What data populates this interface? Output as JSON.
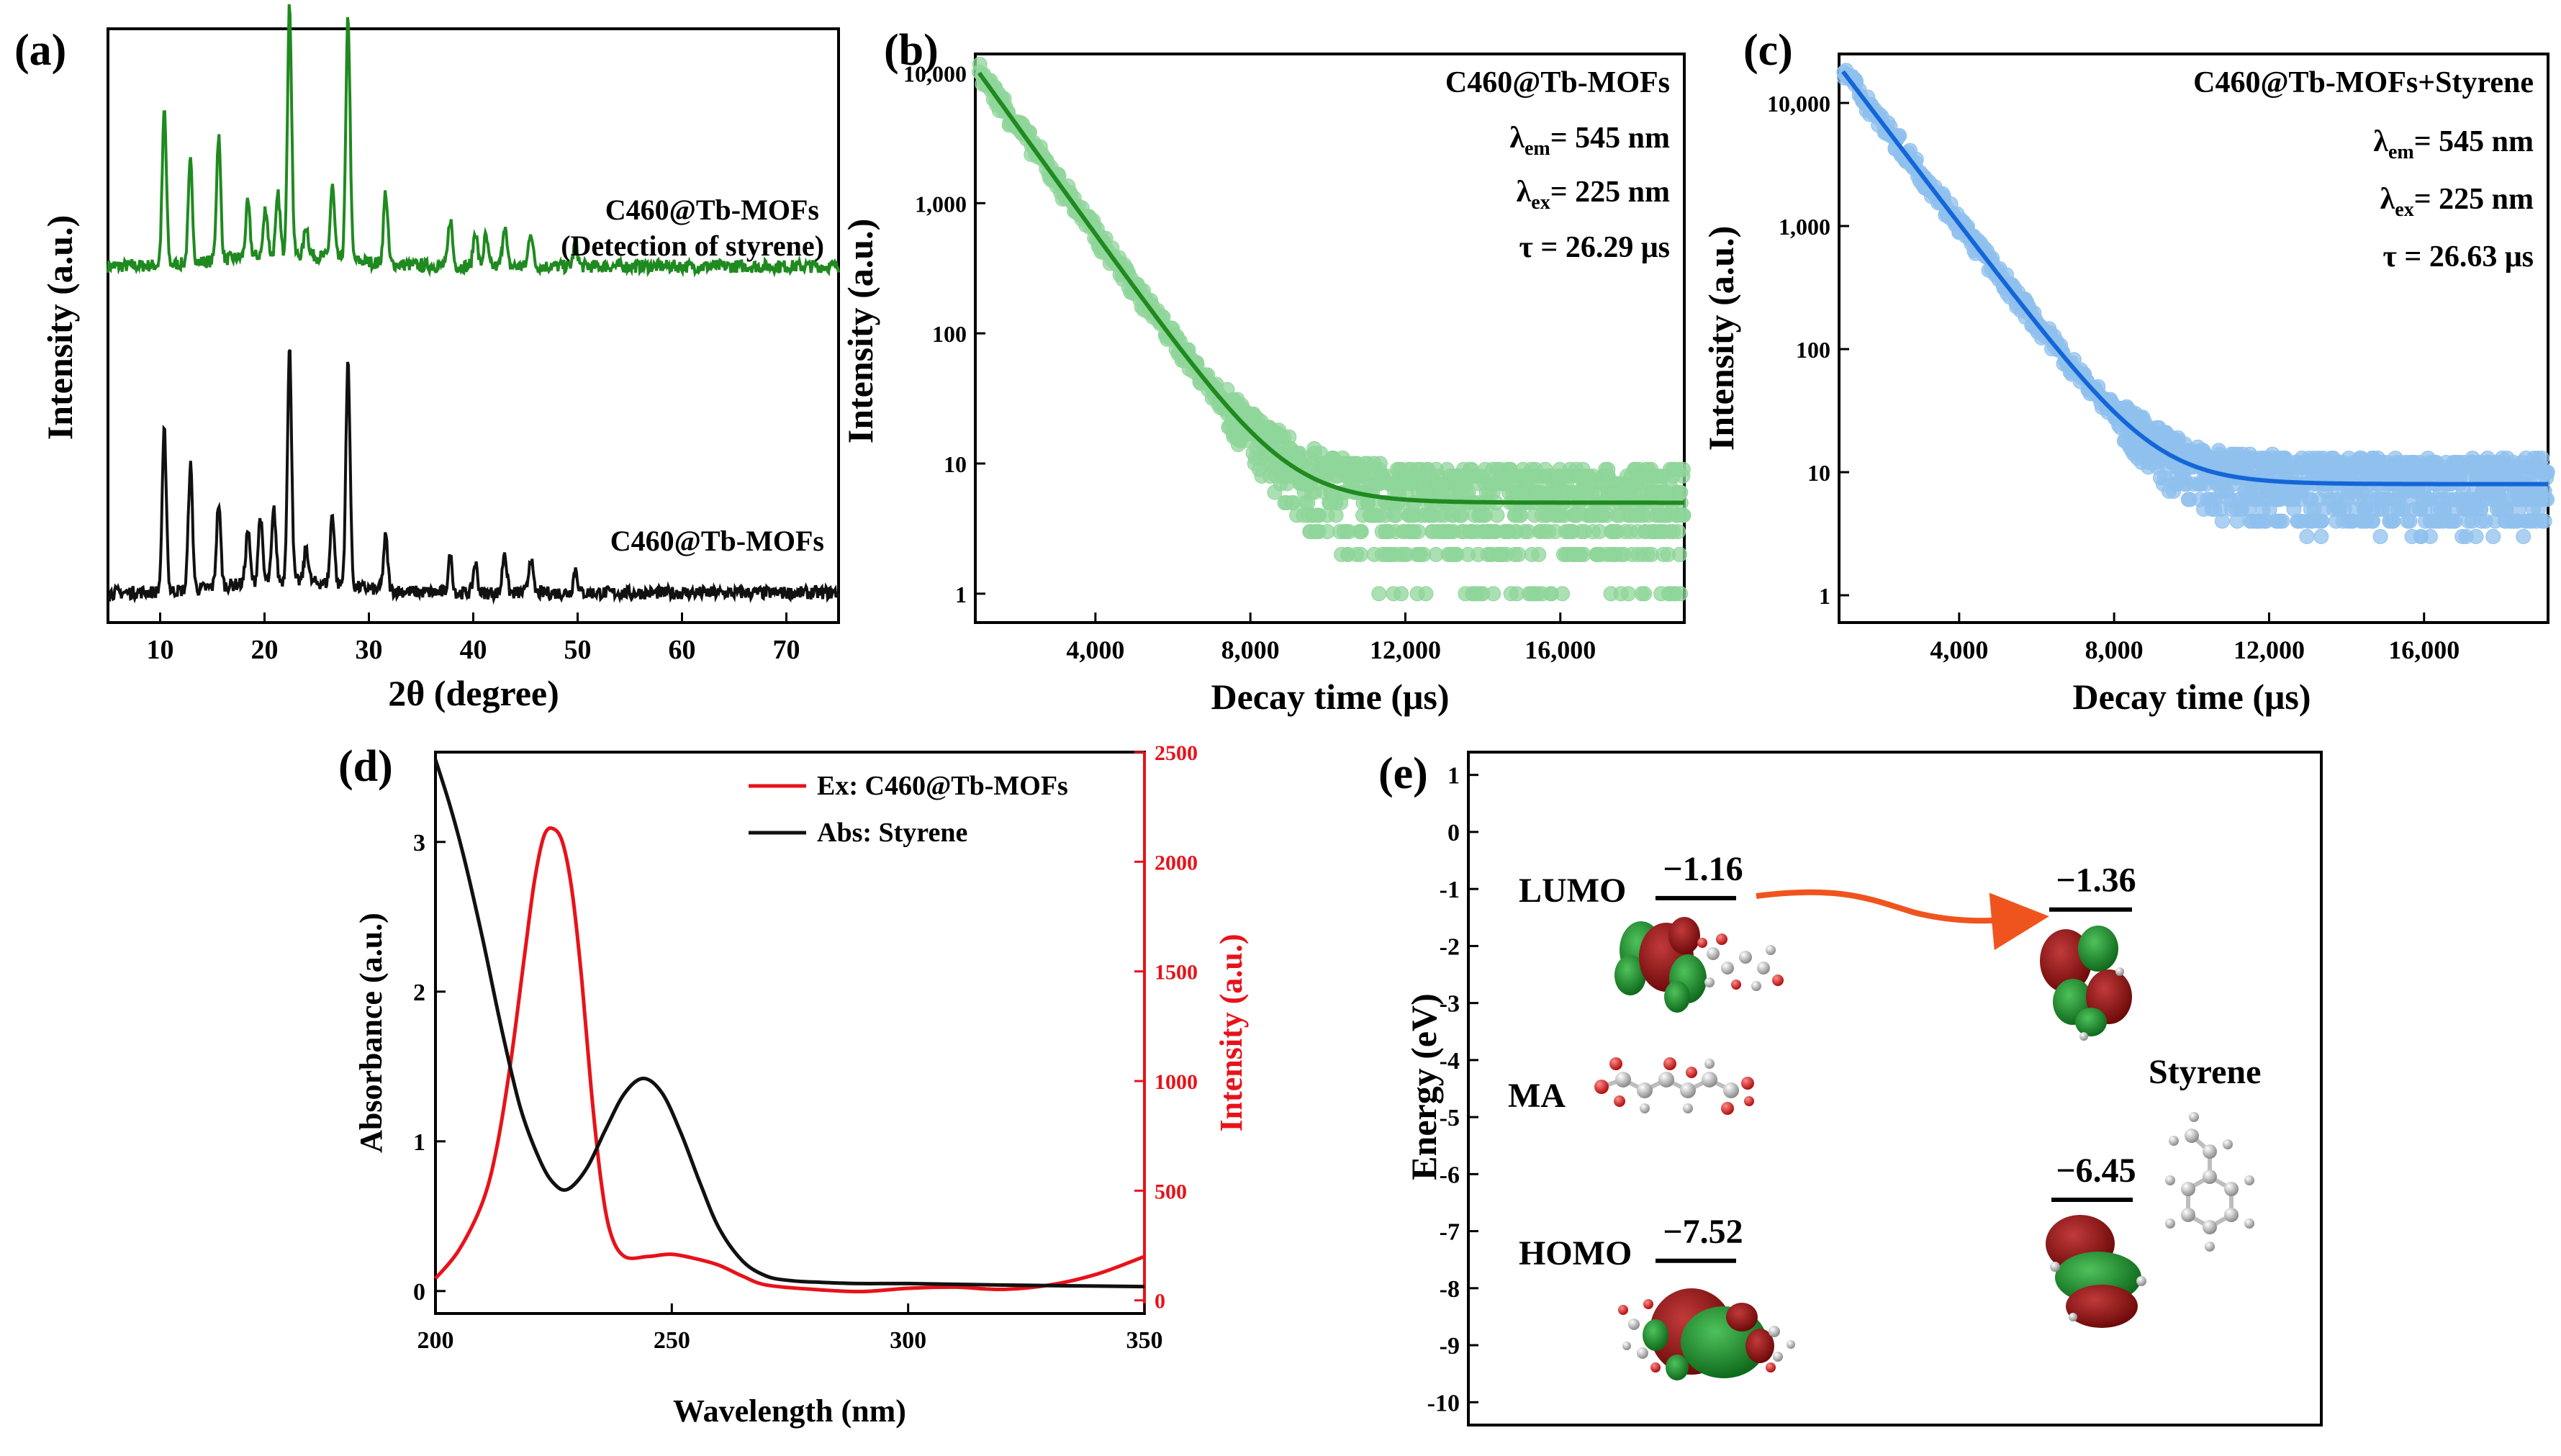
{
  "colors": {
    "green": "#1f8a1f",
    "green_light": "#8fd59a",
    "black": "#111111",
    "blue": "#1466d8",
    "blue_light": "#8fc0ee",
    "red": "#e8121a",
    "orange": "#f0541e",
    "homo_red": "#8b0f0f",
    "lumo_green": "#1b8f2a",
    "atom_grey": "#9a9a9a",
    "atom_red": "#d81e1e"
  },
  "chart_data": [
    {
      "id": "a",
      "panel_label": "(a)",
      "type": "line",
      "title": "",
      "xlabel": "2θ (degree)",
      "ylabel": "Intensity (a.u.)",
      "xlim": [
        5,
        75
      ],
      "xticks": [
        10,
        20,
        30,
        40,
        50,
        60,
        70
      ],
      "xtick_labels": [
        "10",
        "20",
        "30",
        "40",
        "50",
        "60",
        "70"
      ],
      "yticks": [],
      "grid": false,
      "series": [
        {
          "name": "C460@Tb-MOFs (Detection of styrene)",
          "label_lines": [
            "C460@Tb-MOFs",
            "(Detection of styrene)"
          ],
          "color_key": "green",
          "baseline": 0.6,
          "peaks": [
            [
              10.4,
              0.26
            ],
            [
              12.9,
              0.17
            ],
            [
              15.6,
              0.21
            ],
            [
              18.4,
              0.09
            ],
            [
              20.1,
              0.08
            ],
            [
              21.3,
              0.1
            ],
            [
              22.4,
              0.42
            ],
            [
              24.0,
              0.05
            ],
            [
              26.5,
              0.12
            ],
            [
              28.0,
              0.41
            ],
            [
              31.6,
              0.12
            ],
            [
              37.8,
              0.08
            ],
            [
              40.2,
              0.06
            ],
            [
              41.2,
              0.05
            ],
            [
              43.0,
              0.07
            ],
            [
              45.5,
              0.06
            ],
            [
              49.8,
              0.04
            ]
          ]
        },
        {
          "name": "C460@Tb-MOFs",
          "label_lines": [
            "C460@Tb-MOFs"
          ],
          "color_key": "black",
          "baseline": 0.05,
          "peaks": [
            [
              10.4,
              0.27
            ],
            [
              12.9,
              0.21
            ],
            [
              15.6,
              0.14
            ],
            [
              18.4,
              0.09
            ],
            [
              19.6,
              0.11
            ],
            [
              20.9,
              0.12
            ],
            [
              22.4,
              0.39
            ],
            [
              24.0,
              0.06
            ],
            [
              26.5,
              0.12
            ],
            [
              28.0,
              0.38
            ],
            [
              31.6,
              0.09
            ],
            [
              37.8,
              0.06
            ],
            [
              40.2,
              0.05
            ],
            [
              43.0,
              0.07
            ],
            [
              45.5,
              0.06
            ],
            [
              49.8,
              0.04
            ]
          ]
        }
      ]
    },
    {
      "id": "b",
      "panel_label": "(b)",
      "type": "scatter",
      "title": "",
      "xlabel": "Decay time (μs)",
      "ylabel": "Intensity (a.u.)",
      "xlim": [
        900,
        19200
      ],
      "ylim": [
        0.6,
        14000
      ],
      "yscale": "log",
      "xticks": [
        4000,
        8000,
        12000,
        16000
      ],
      "xtick_labels": [
        "4,000",
        "8,000",
        "12,000",
        "16,000"
      ],
      "yticks": [
        1,
        10,
        100,
        1000,
        10000
      ],
      "ytick_labels": [
        "1",
        "10",
        "100",
        "1,000",
        "10,000"
      ],
      "grid": false,
      "color_key": "green",
      "fit": {
        "A": 10000,
        "t0": 1000,
        "tau": 1050,
        "background": 5
      },
      "annotation_lines": [
        {
          "main": "C460@Tb-MOFs",
          "sub": "",
          "rest": ""
        },
        {
          "main": "λ",
          "sub": "em",
          "rest": "= 545 nm"
        },
        {
          "main": "λ",
          "sub": "ex",
          "rest": "= 225 nm"
        },
        {
          "main": "τ = 26.29 μs",
          "sub": "",
          "rest": ""
        }
      ]
    },
    {
      "id": "c",
      "panel_label": "(c)",
      "type": "scatter",
      "title": "",
      "xlabel": "Decay time (μs)",
      "ylabel": "Intensity (a.u.)",
      "xlim": [
        900,
        19200
      ],
      "ylim": [
        0.6,
        25000
      ],
      "yscale": "log",
      "xticks": [
        4000,
        8000,
        12000,
        16000
      ],
      "xtick_labels": [
        "4,000",
        "8,000",
        "12,000",
        "16,000"
      ],
      "yticks": [
        1,
        10,
        100,
        1000,
        10000
      ],
      "ytick_labels": [
        "1",
        "10",
        "100",
        "1,000",
        "10,000"
      ],
      "grid": false,
      "color_key": "blue",
      "fit": {
        "A": 18000,
        "t0": 1000,
        "tau": 1050,
        "background": 8
      },
      "annotation_lines": [
        {
          "main": "C460@Tb-MOFs+Styrene",
          "sub": "",
          "rest": ""
        },
        {
          "main": "λ",
          "sub": "em",
          "rest": "= 545 nm"
        },
        {
          "main": "λ",
          "sub": "ex",
          "rest": "= 225 nm"
        },
        {
          "main": "τ = 26.63 μs",
          "sub": "",
          "rest": ""
        }
      ]
    },
    {
      "id": "d",
      "panel_label": "(d)",
      "type": "line",
      "title": "",
      "xlabel": "Wavelength (nm)",
      "ylabel": "Absorbance (a.u.)",
      "ylabel_right": "Intensity (a.u.)",
      "xlim": [
        200,
        350
      ],
      "ylim": [
        -0.15,
        3.6
      ],
      "ylim_right": [
        -60,
        2500
      ],
      "xticks": [
        200,
        250,
        300,
        350
      ],
      "xtick_labels": [
        "200",
        "250",
        "300",
        "350"
      ],
      "yticks": [
        0,
        1,
        2,
        3
      ],
      "ytick_labels": [
        "0",
        "1",
        "2",
        "3"
      ],
      "yticks_right": [
        0,
        500,
        1000,
        1500,
        2000,
        2500
      ],
      "ytick_labels_right": [
        "0",
        "500",
        "1000",
        "1500",
        "2000",
        "2500"
      ],
      "grid": false,
      "legend": "top-right",
      "series": [
        {
          "name": "Ex: C460@Tb-MOFs",
          "axis": "right",
          "color_key": "red",
          "x": [
            200,
            205,
            210,
            213,
            216,
            219,
            221,
            223,
            225,
            227,
            229,
            231,
            233,
            235,
            237,
            240,
            245,
            250,
            255,
            260,
            265,
            270,
            280,
            290,
            300,
            310,
            320,
            330,
            340,
            350
          ],
          "y": [
            100,
            230,
            450,
            700,
            1100,
            1600,
            1920,
            2120,
            2150,
            2080,
            1850,
            1450,
            950,
            550,
            310,
            200,
            200,
            210,
            190,
            160,
            110,
            70,
            50,
            40,
            55,
            60,
            50,
            70,
            120,
            200
          ]
        },
        {
          "name": "Abs: Styrene",
          "axis": "left",
          "color_key": "black",
          "x": [
            200,
            203,
            206,
            210,
            214,
            218,
            222,
            225,
            228,
            232,
            236,
            240,
            244,
            248,
            252,
            256,
            260,
            265,
            270,
            275,
            280,
            290,
            300,
            320,
            350
          ],
          "y": [
            3.55,
            3.25,
            2.9,
            2.35,
            1.75,
            1.22,
            0.88,
            0.72,
            0.68,
            0.82,
            1.08,
            1.32,
            1.42,
            1.32,
            1.05,
            0.72,
            0.42,
            0.2,
            0.1,
            0.07,
            0.06,
            0.05,
            0.05,
            0.04,
            0.03
          ]
        }
      ]
    },
    {
      "id": "e",
      "panel_label": "(e)",
      "type": "diagram",
      "title": "",
      "ylabel": "Energy (eV)",
      "ylim": [
        -10.4,
        1.4
      ],
      "yticks": [
        1,
        0,
        -1,
        -2,
        -3,
        -4,
        -5,
        -6,
        -7,
        -8,
        -9,
        -10
      ],
      "ytick_labels": [
        "1",
        "0",
        "-1",
        "-2",
        "-3",
        "-4",
        "-5",
        "-6",
        "-7",
        "-8",
        "-9",
        "-10"
      ],
      "levels": [
        {
          "name": "MA LUMO",
          "energy": -1.16,
          "label": "−1.16",
          "side_label": "LUMO",
          "column": "left"
        },
        {
          "name": "MA HOMO",
          "energy": -7.52,
          "label": "−7.52",
          "side_label": "HOMO",
          "column": "left"
        },
        {
          "name": "Styrene LUMO",
          "energy": -1.36,
          "label": "−1.36",
          "side_label": "",
          "column": "right"
        },
        {
          "name": "Styrene HOMO",
          "energy": -6.45,
          "label": "−6.45",
          "side_label": "",
          "column": "right"
        }
      ],
      "molecule_labels": {
        "left": "MA",
        "right": "Styrene"
      }
    }
  ]
}
